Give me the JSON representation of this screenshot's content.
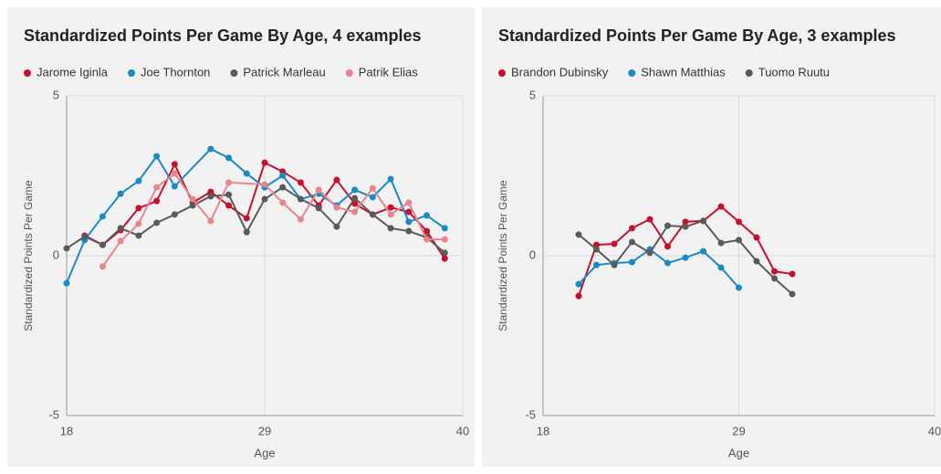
{
  "chart_data": [
    {
      "type": "line",
      "title": "Standardized Points Per Game By Age, 4 examples",
      "x_label": "Age",
      "y_label": "Standardized Points Per Game",
      "xlim": [
        18,
        40
      ],
      "xticks": [
        18,
        29,
        40
      ],
      "ylim": [
        -5,
        5
      ],
      "yticks": [
        -5,
        0,
        5
      ],
      "grid": true,
      "series": [
        {
          "name": "Jarome Iginla",
          "color": "#c8102e",
          "x": [
            19,
            20,
            21,
            22,
            23,
            24,
            25,
            26,
            27,
            28,
            29,
            30,
            31,
            32,
            33,
            34,
            35,
            36,
            37,
            38,
            39
          ],
          "values": [
            0.63,
            0.34,
            0.8,
            1.49,
            1.71,
            2.86,
            1.66,
            2.0,
            1.57,
            1.17,
            2.91,
            2.63,
            2.29,
            1.57,
            2.37,
            1.63,
            1.29,
            1.51,
            1.37,
            0.77,
            -0.09
          ]
        },
        {
          "name": "Joe Thornton",
          "color": "#1a8ac6",
          "x": [
            18,
            19,
            20,
            21,
            22,
            23,
            24,
            26,
            27,
            28,
            29,
            30,
            31,
            32,
            33,
            34,
            35,
            36,
            37,
            38,
            39
          ],
          "values": [
            -0.86,
            0.49,
            1.23,
            1.94,
            2.34,
            3.11,
            2.17,
            3.34,
            3.06,
            2.57,
            2.14,
            2.51,
            1.77,
            1.94,
            1.57,
            2.06,
            1.83,
            2.4,
            1.06,
            1.26,
            0.86
          ]
        },
        {
          "name": "Patrick Marleau",
          "color": "#5a5a5a",
          "x": [
            18,
            19,
            20,
            21,
            22,
            23,
            24,
            25,
            26,
            27,
            28,
            29,
            30,
            31,
            32,
            33,
            34,
            35,
            36,
            37,
            38,
            39
          ],
          "values": [
            0.23,
            0.6,
            0.34,
            0.86,
            0.63,
            1.03,
            1.29,
            1.57,
            1.86,
            1.91,
            0.74,
            1.77,
            2.14,
            1.77,
            1.49,
            0.91,
            1.8,
            1.29,
            0.86,
            0.77,
            0.57,
            0.09
          ]
        },
        {
          "name": "Patrik Elias",
          "color": "#e8858a",
          "x": [
            20,
            21,
            22,
            23,
            24,
            25,
            26,
            27,
            29,
            30,
            31,
            32,
            33,
            34,
            35,
            36,
            37,
            38,
            39
          ],
          "values": [
            -0.34,
            0.46,
            1.0,
            2.14,
            2.57,
            1.77,
            1.09,
            2.29,
            2.23,
            1.66,
            1.14,
            2.06,
            1.51,
            1.37,
            2.11,
            1.29,
            1.66,
            0.51,
            0.51
          ]
        }
      ]
    },
    {
      "type": "line",
      "title": "Standardized Points Per Game By Age, 3 examples",
      "x_label": "Age",
      "y_label": "Standardized Points Per Game",
      "xlim": [
        18,
        40
      ],
      "xticks": [
        18,
        29,
        40
      ],
      "ylim": [
        -5,
        5
      ],
      "yticks": [
        -5,
        0,
        5
      ],
      "grid": true,
      "series": [
        {
          "name": "Brandon Dubinsky",
          "color": "#c8102e",
          "x": [
            20,
            21,
            22,
            23,
            24,
            25,
            26,
            27,
            28,
            29,
            30,
            31,
            32
          ],
          "values": [
            -1.26,
            0.34,
            0.37,
            0.86,
            1.14,
            0.29,
            1.06,
            1.09,
            1.54,
            1.06,
            0.57,
            -0.49,
            -0.57
          ]
        },
        {
          "name": "Shawn Matthias",
          "color": "#1a8ac6",
          "x": [
            20,
            21,
            22,
            23,
            24,
            25,
            26,
            27,
            28,
            29
          ],
          "values": [
            -0.89,
            -0.29,
            -0.23,
            -0.2,
            0.2,
            -0.23,
            -0.06,
            0.14,
            -0.37,
            -1.0
          ]
        },
        {
          "name": "Tuomo Ruutu",
          "color": "#5a5a5a",
          "x": [
            20,
            21,
            22,
            23,
            24,
            25,
            26,
            27,
            28,
            29,
            30,
            31,
            32
          ],
          "values": [
            0.66,
            0.2,
            -0.29,
            0.43,
            0.09,
            0.94,
            0.91,
            1.09,
            0.4,
            0.49,
            -0.17,
            -0.71,
            -1.2
          ]
        }
      ]
    }
  ]
}
